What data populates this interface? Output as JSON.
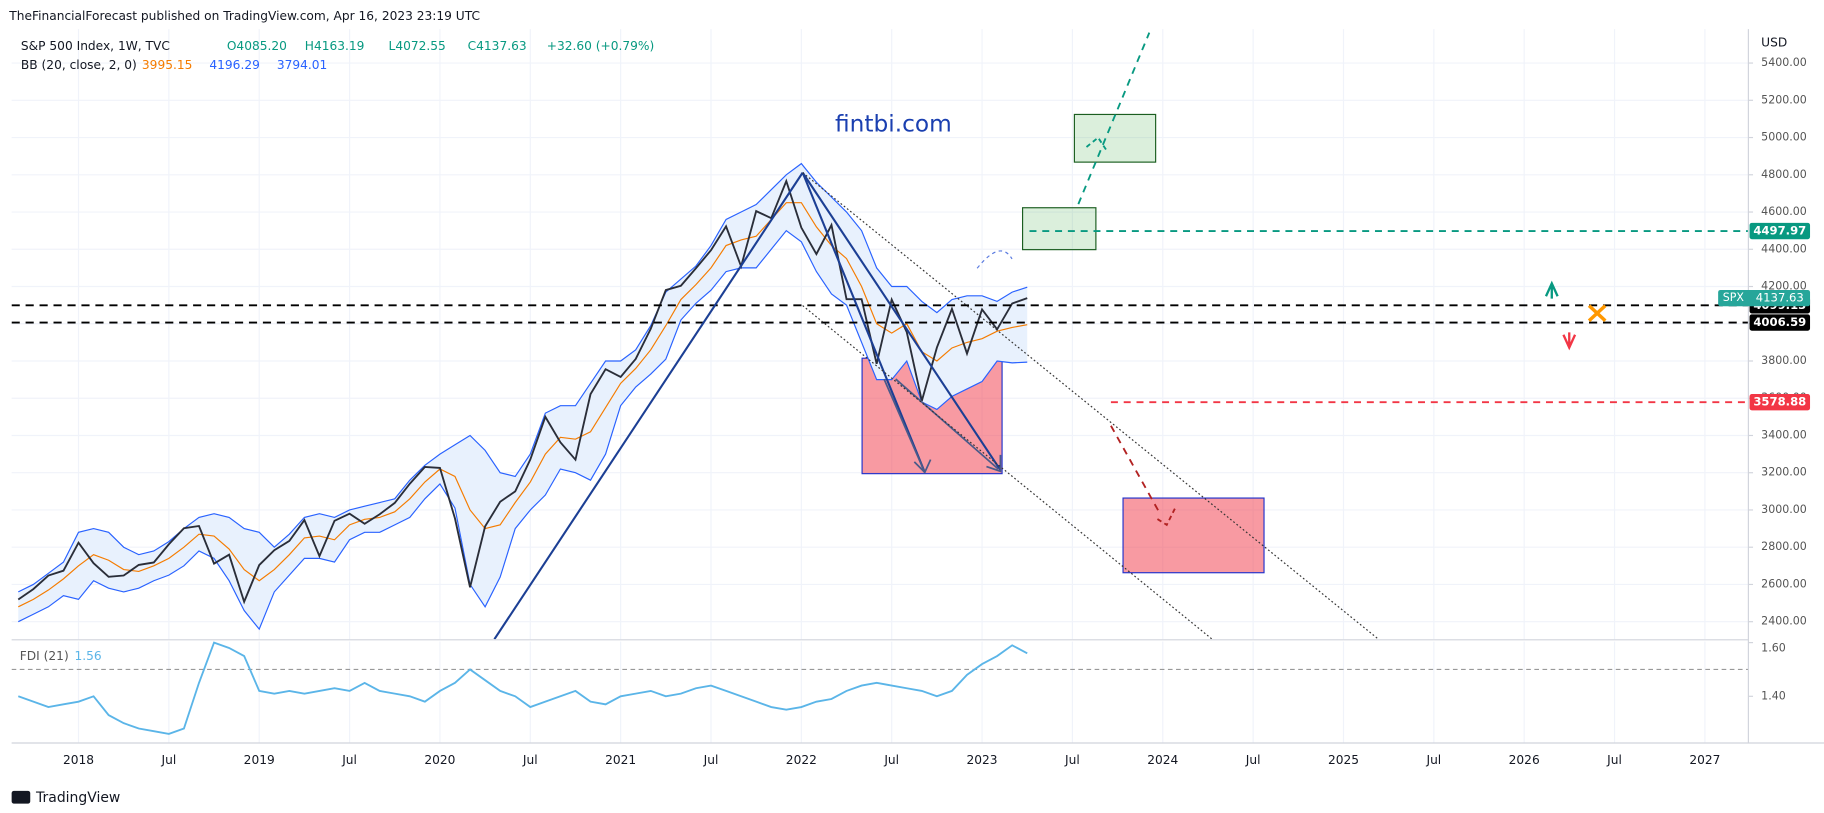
{
  "header": {
    "publisher": "TheFinancialForecast published on TradingView.com, Apr 16, 2023 23:19 UTC",
    "legend": {
      "symbol": "S&P 500 Index, 1W, TVC",
      "open": "O4085.20",
      "high": "H4163.19",
      "low": "L4072.55",
      "close": "C4137.63",
      "change": "+32.60 (+0.79%)"
    },
    "bb_label": "BB (20, close, 2, 0)"
  },
  "watermark": "fintbi.com",
  "footer": "TradingView",
  "chart_data": [
    {
      "type": "line",
      "y_label": "USD",
      "x": [
        "2017-09",
        "2017-10",
        "2017-11",
        "2017-12",
        "2018-01",
        "2018-02",
        "2018-03",
        "2018-04",
        "2018-05",
        "2018-06",
        "2018-07",
        "2018-08",
        "2018-09",
        "2018-10",
        "2018-11",
        "2018-12",
        "2019-01",
        "2019-02",
        "2019-03",
        "2019-04",
        "2019-05",
        "2019-06",
        "2019-07",
        "2019-08",
        "2019-09",
        "2019-10",
        "2019-11",
        "2019-12",
        "2020-01",
        "2020-02",
        "2020-03",
        "2020-04",
        "2020-05",
        "2020-06",
        "2020-07",
        "2020-08",
        "2020-09",
        "2020-10",
        "2020-11",
        "2020-12",
        "2021-01",
        "2021-02",
        "2021-03",
        "2021-04",
        "2021-05",
        "2021-06",
        "2021-07",
        "2021-08",
        "2021-09",
        "2021-10",
        "2021-11",
        "2021-12",
        "2022-01",
        "2022-02",
        "2022-03",
        "2022-04",
        "2022-05",
        "2022-06",
        "2022-07",
        "2022-08",
        "2022-09",
        "2022-10",
        "2022-11",
        "2022-12",
        "2023-01",
        "2023-02",
        "2023-03",
        "2023-04"
      ],
      "series": [
        {
          "color": "#2a2e39",
          "values": [
            2519,
            2575,
            2648,
            2674,
            2824,
            2714,
            2641,
            2648,
            2705,
            2718,
            2816,
            2902,
            2914,
            2712,
            2760,
            2507,
            2704,
            2784,
            2834,
            2946,
            2752,
            2942,
            2980,
            2926,
            2977,
            3038,
            3141,
            3231,
            3226,
            2954,
            2585,
            2912,
            3044,
            3100,
            3271,
            3500,
            3363,
            3270,
            3622,
            3756,
            3714,
            3811,
            3973,
            4181,
            4204,
            4298,
            4395,
            4523,
            4308,
            4605,
            4567,
            4766,
            4516,
            4374,
            4530,
            4132,
            4132,
            3785,
            4130,
            3955,
            3586,
            3872,
            4080,
            3840,
            4077,
            3970,
            4109,
            4137.63
          ]
        },
        {
          "color": "#f57c00",
          "values": [
            2480,
            2520,
            2570,
            2630,
            2700,
            2760,
            2730,
            2680,
            2670,
            2700,
            2740,
            2800,
            2870,
            2860,
            2790,
            2680,
            2620,
            2680,
            2760,
            2850,
            2860,
            2840,
            2920,
            2950,
            2960,
            2990,
            3060,
            3150,
            3220,
            3180,
            3000,
            2900,
            2920,
            3040,
            3150,
            3300,
            3390,
            3380,
            3420,
            3550,
            3680,
            3760,
            3860,
            3990,
            4130,
            4210,
            4300,
            4420,
            4450,
            4470,
            4560,
            4650,
            4650,
            4520,
            4420,
            4350,
            4200,
            4000,
            3950,
            4000,
            3850,
            3800,
            3870,
            3900,
            3920,
            3960,
            3980,
            3995.15
          ]
        },
        {
          "color": "#2962ff",
          "values": [
            2560,
            2600,
            2660,
            2720,
            2880,
            2900,
            2880,
            2800,
            2760,
            2780,
            2830,
            2900,
            2960,
            2980,
            2960,
            2900,
            2880,
            2800,
            2870,
            2960,
            2980,
            2960,
            3000,
            3020,
            3040,
            3060,
            3160,
            3240,
            3300,
            3350,
            3400,
            3320,
            3200,
            3180,
            3300,
            3520,
            3560,
            3560,
            3680,
            3800,
            3800,
            3860,
            3990,
            4170,
            4240,
            4310,
            4420,
            4560,
            4600,
            4640,
            4720,
            4800,
            4860,
            4760,
            4680,
            4600,
            4500,
            4300,
            4200,
            4200,
            4120,
            4060,
            4130,
            4150,
            4150,
            4120,
            4170,
            4196.29
          ]
        },
        {
          "color": "#2962ff",
          "values": [
            2400,
            2440,
            2480,
            2540,
            2520,
            2620,
            2580,
            2560,
            2580,
            2620,
            2650,
            2700,
            2780,
            2740,
            2620,
            2460,
            2360,
            2560,
            2650,
            2740,
            2740,
            2720,
            2840,
            2880,
            2880,
            2920,
            2960,
            3060,
            3140,
            3010,
            2600,
            2480,
            2640,
            2900,
            3000,
            3080,
            3220,
            3200,
            3160,
            3300,
            3560,
            3660,
            3730,
            3810,
            4020,
            4110,
            4180,
            4280,
            4300,
            4300,
            4400,
            4500,
            4440,
            4280,
            4160,
            4100,
            3900,
            3700,
            3700,
            3800,
            3580,
            3540,
            3610,
            3650,
            3690,
            3800,
            3790,
            3794.01
          ]
        }
      ],
      "band_fill": "#e8f1fd",
      "xlim": [
        "2017-08-18",
        "2027-03-28"
      ],
      "xticks": [
        {
          "value": "2018-01-01",
          "label": "2018"
        },
        {
          "value": "2018-07-01",
          "label": "Jul"
        },
        {
          "value": "2019-01-01",
          "label": "2019"
        },
        {
          "value": "2019-07-01",
          "label": "Jul"
        },
        {
          "value": "2020-01-01",
          "label": "2020"
        },
        {
          "value": "2020-07-01",
          "label": "Jul"
        },
        {
          "value": "2021-01-01",
          "label": "2021"
        },
        {
          "value": "2021-07-01",
          "label": "Jul"
        },
        {
          "value": "2022-01-01",
          "label": "2022"
        },
        {
          "value": "2022-07-01",
          "label": "Jul"
        },
        {
          "value": "2023-01-01",
          "label": "2023"
        },
        {
          "value": "2023-07-01",
          "label": "Jul"
        },
        {
          "value": "2024-01-01",
          "label": "2024"
        },
        {
          "value": "2024-07-01",
          "label": "Jul"
        },
        {
          "value": "2025-01-01",
          "label": "2025"
        },
        {
          "value": "2025-07-01",
          "label": "Jul"
        },
        {
          "value": "2026-01-01",
          "label": "2026"
        },
        {
          "value": "2026-07-01",
          "label": "Jul"
        },
        {
          "value": "2027-01-01",
          "label": "2027"
        }
      ],
      "ylim": [
        2306,
        5582
      ],
      "yticks": [
        {
          "value": 2400,
          "label": "2400.00"
        },
        {
          "value": 2600,
          "label": "2600.00"
        },
        {
          "value": 2800,
          "label": "2800.00"
        },
        {
          "value": 3000,
          "label": "3000.00"
        },
        {
          "value": 3200,
          "label": "3200.00"
        },
        {
          "value": 3400,
          "label": "3400.00"
        },
        {
          "value": 3600,
          "label": "3600.00"
        },
        {
          "value": 3800,
          "label": "3800.00"
        },
        {
          "value": 4000,
          "label": "4000.00"
        },
        {
          "value": 4200,
          "label": "4200.00"
        },
        {
          "value": 4400,
          "label": "4400.00"
        },
        {
          "value": 4600,
          "label": "4600.00"
        },
        {
          "value": 4800,
          "label": "4800.00"
        },
        {
          "value": 5000,
          "label": "5000.00"
        },
        {
          "value": 5200,
          "label": "5200.00"
        },
        {
          "value": 5400,
          "label": "5400.00"
        }
      ],
      "grid": true,
      "levels": [
        {
          "value": 4497.97,
          "color": "#089981"
        },
        {
          "value": 4099.13,
          "color": "#000000"
        },
        {
          "value": 4006.59,
          "color": "#000000"
        },
        {
          "value": 3578.88,
          "color": "#f23645"
        }
      ],
      "last_price": {
        "label": "SPX",
        "value": 4137.63,
        "color": "#26a69a"
      },
      "zones": [
        {
          "x": [
            "2022-05-02",
            "2023-02-11"
          ],
          "y": [
            3195,
            3815
          ],
          "color": "#f23645"
        },
        {
          "x": [
            "2023-10-12",
            "2024-07-23"
          ],
          "y": [
            2663,
            3064
          ],
          "color": "#f23645"
        },
        {
          "x": [
            "2023-07-05",
            "2023-12-17"
          ],
          "y": [
            4868,
            5124
          ],
          "color": "#4caf50"
        },
        {
          "x": [
            "2023-03-22",
            "2023-08-18"
          ],
          "y": [
            4398,
            4623
          ],
          "color": "#4caf50"
        }
      ]
    },
    {
      "type": "line",
      "title": "FDI (21)",
      "x": [
        "2017-09",
        "2017-10",
        "2017-11",
        "2017-12",
        "2018-01",
        "2018-02",
        "2018-03",
        "2018-04",
        "2018-05",
        "2018-06",
        "2018-07",
        "2018-08",
        "2018-09",
        "2018-10",
        "2018-11",
        "2018-12",
        "2019-01",
        "2019-02",
        "2019-03",
        "2019-04",
        "2019-05",
        "2019-06",
        "2019-07",
        "2019-08",
        "2019-09",
        "2019-10",
        "2019-11",
        "2019-12",
        "2020-01",
        "2020-02",
        "2020-03",
        "2020-04",
        "2020-05",
        "2020-06",
        "2020-07",
        "2020-08",
        "2020-09",
        "2020-10",
        "2020-11",
        "2020-12",
        "2021-01",
        "2021-02",
        "2021-03",
        "2021-04",
        "2021-05",
        "2021-06",
        "2021-07",
        "2021-08",
        "2021-09",
        "2021-10",
        "2021-11",
        "2021-12",
        "2022-01",
        "2022-02",
        "2022-03",
        "2022-04",
        "2022-05",
        "2022-06",
        "2022-07",
        "2022-08",
        "2022-09",
        "2022-10",
        "2022-11",
        "2022-12",
        "2023-01",
        "2023-02",
        "2023-03",
        "2023-04"
      ],
      "series": [
        {
          "color": "#5bb5e8",
          "values": [
            1.4,
            1.38,
            1.36,
            1.37,
            1.38,
            1.4,
            1.33,
            1.3,
            1.28,
            1.27,
            1.26,
            1.28,
            1.45,
            1.6,
            1.58,
            1.55,
            1.42,
            1.41,
            1.42,
            1.41,
            1.42,
            1.43,
            1.42,
            1.45,
            1.42,
            1.41,
            1.4,
            1.38,
            1.42,
            1.45,
            1.5,
            1.46,
            1.42,
            1.4,
            1.36,
            1.38,
            1.4,
            1.42,
            1.38,
            1.37,
            1.4,
            1.41,
            1.42,
            1.4,
            1.41,
            1.43,
            1.44,
            1.42,
            1.4,
            1.38,
            1.36,
            1.35,
            1.36,
            1.38,
            1.39,
            1.42,
            1.44,
            1.45,
            1.44,
            1.43,
            1.42,
            1.4,
            1.42,
            1.48,
            1.52,
            1.55,
            1.59,
            1.56
          ]
        }
      ],
      "xlim": [
        "2017-08-18",
        "2027-03-28"
      ],
      "ylim": [
        1.226,
        1.604
      ],
      "yticks": [
        {
          "value": 1.4,
          "label": "1.40"
        },
        {
          "value": 1.6,
          "label": "1.60"
        }
      ],
      "reference": 1.5
    }
  ]
}
